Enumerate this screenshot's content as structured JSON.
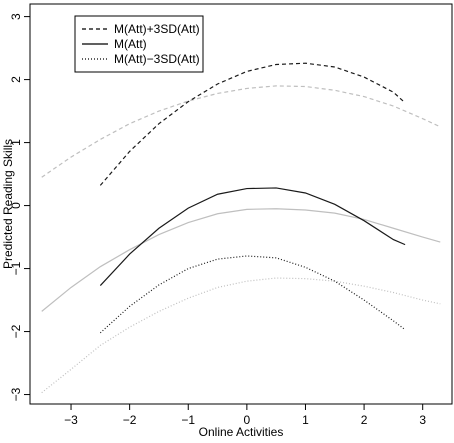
{
  "chart_data": {
    "type": "line",
    "xlabel": "Online Activities",
    "ylabel": "Predicted Reading Skills",
    "xlim": [
      -3.7,
      3.5
    ],
    "ylim": [
      -3.15,
      3.2
    ],
    "x_ticks": [
      -3,
      -2,
      -1,
      0,
      1,
      2,
      3
    ],
    "y_ticks": [
      -3,
      -2,
      -1,
      0,
      1,
      2,
      3
    ],
    "x_tick_labels": [
      "−3",
      "−2",
      "−1",
      "0",
      "1",
      "2",
      "3"
    ],
    "y_tick_labels": [
      "−3",
      "−2",
      "−1",
      "0",
      "1",
      "2",
      "3"
    ],
    "grid": false,
    "legend": {
      "placement": "top-left",
      "entries": [
        {
          "label": "M(Att)+3SD(Att)",
          "dash": "4,3",
          "color": "#000000"
        },
        {
          "label": "M(Att)",
          "dash": "",
          "color": "#000000"
        },
        {
          "label": "M(Att)−3SD(Att)",
          "dash": "1,2",
          "color": "#000000"
        }
      ]
    },
    "series": [
      {
        "name": "M(Att)+3SD(Att)",
        "group": "high",
        "dash": "4,3",
        "color": "#1a1a1a",
        "x": [
          -2.5,
          -2.0,
          -1.5,
          -1.0,
          -0.5,
          0.0,
          0.5,
          1.0,
          1.5,
          2.0,
          2.5,
          2.7
        ],
        "y": [
          0.32,
          0.86,
          1.3,
          1.65,
          1.93,
          2.13,
          2.24,
          2.26,
          2.2,
          2.04,
          1.8,
          1.63
        ]
      },
      {
        "name": "M(Att)",
        "group": "mid",
        "dash": "",
        "color": "#1a1a1a",
        "x": [
          -2.5,
          -2.0,
          -1.5,
          -1.0,
          -0.5,
          0.0,
          0.5,
          1.0,
          1.5,
          2.0,
          2.5,
          2.7
        ],
        "y": [
          -1.27,
          -0.77,
          -0.36,
          -0.04,
          0.18,
          0.27,
          0.28,
          0.2,
          0.02,
          -0.24,
          -0.54,
          -0.62
        ]
      },
      {
        "name": "M(Att)−3SD(Att)",
        "group": "low",
        "dash": "1,2",
        "color": "#1a1a1a",
        "x": [
          -2.5,
          -2.0,
          -1.5,
          -1.0,
          -0.5,
          0.0,
          0.5,
          1.0,
          1.5,
          2.0,
          2.5,
          2.7
        ],
        "y": [
          -2.02,
          -1.6,
          -1.26,
          -1.0,
          -0.85,
          -0.8,
          -0.83,
          -0.98,
          -1.2,
          -1.5,
          -1.83,
          -1.97
        ]
      },
      {
        "name": "",
        "group": "high",
        "dash": "4,3",
        "color": "#bfbfbf",
        "x": [
          -3.5,
          -3.0,
          -2.5,
          -2.0,
          -1.5,
          -1.0,
          -0.5,
          0.0,
          0.5,
          1.0,
          1.5,
          2.0,
          2.5,
          3.0,
          3.3
        ],
        "y": [
          0.45,
          0.77,
          1.05,
          1.3,
          1.5,
          1.66,
          1.78,
          1.86,
          1.9,
          1.89,
          1.83,
          1.73,
          1.58,
          1.38,
          1.25
        ]
      },
      {
        "name": "",
        "group": "mid",
        "dash": "",
        "color": "#bfbfbf",
        "x": [
          -3.5,
          -3.0,
          -2.5,
          -2.0,
          -1.5,
          -1.0,
          -0.5,
          0.0,
          0.5,
          1.0,
          1.5,
          2.0,
          2.5,
          3.0,
          3.3
        ],
        "y": [
          -1.68,
          -1.3,
          -0.97,
          -0.7,
          -0.46,
          -0.27,
          -0.13,
          -0.06,
          -0.05,
          -0.07,
          -0.12,
          -0.22,
          -0.36,
          -0.5,
          -0.58
        ]
      },
      {
        "name": "",
        "group": "low",
        "dash": "1,2",
        "color": "#bfbfbf",
        "x": [
          -3.5,
          -3.0,
          -2.5,
          -2.0,
          -1.5,
          -1.0,
          -0.5,
          0.0,
          0.5,
          1.0,
          1.5,
          2.0,
          2.5,
          3.0,
          3.3
        ],
        "y": [
          -2.97,
          -2.6,
          -2.22,
          -1.93,
          -1.68,
          -1.47,
          -1.3,
          -1.2,
          -1.15,
          -1.16,
          -1.2,
          -1.28,
          -1.38,
          -1.5,
          -1.56
        ]
      }
    ]
  }
}
